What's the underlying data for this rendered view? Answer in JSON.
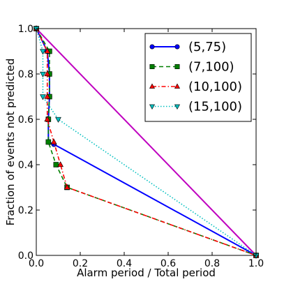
{
  "chart_data": {
    "type": "line",
    "title": "",
    "xlabel": "Alarm period / Total period",
    "ylabel": "Fraction of events not predicted",
    "xlim": [
      0.0,
      1.0
    ],
    "ylim": [
      0.0,
      1.0
    ],
    "x_ticks": [
      "0.0",
      "0.2",
      "0.4",
      "0.6",
      "0.8",
      "1.0"
    ],
    "y_ticks": [
      "0.0",
      "0.2",
      "0.4",
      "0.6",
      "0.8",
      "1.0"
    ],
    "grid": false,
    "legend_position": "top-right",
    "reference_line": {
      "x": [
        0.0,
        1.0
      ],
      "y": [
        1.0,
        0.0
      ],
      "color": "#bf00bf"
    },
    "series": [
      {
        "name": "(5,75)",
        "color": "#0000ff",
        "line_style": "solid",
        "marker": "circle",
        "x": [
          0.0,
          0.05,
          0.06,
          0.06,
          0.055,
          0.055,
          0.055,
          0.08,
          1.0
        ],
        "y": [
          1.0,
          0.9,
          0.8,
          0.7,
          0.6,
          0.5,
          0.5,
          0.49,
          0.0
        ]
      },
      {
        "name": "(7,100)",
        "color": "#007f00",
        "line_style": "dashed",
        "marker": "square",
        "x": [
          0.0,
          0.06,
          0.06,
          0.06,
          0.055,
          0.055,
          0.09,
          0.14,
          1.0
        ],
        "y": [
          1.0,
          0.9,
          0.8,
          0.7,
          0.6,
          0.5,
          0.4,
          0.3,
          0.0
        ]
      },
      {
        "name": "(10,100)",
        "color": "#ff0000",
        "line_style": "dashdot",
        "marker": "triangle-up",
        "x": [
          0.0,
          0.05,
          0.05,
          0.05,
          0.05,
          0.08,
          0.11,
          0.14,
          1.0
        ],
        "y": [
          1.0,
          0.9,
          0.8,
          0.7,
          0.6,
          0.5,
          0.4,
          0.3,
          0.0
        ]
      },
      {
        "name": "(15,100)",
        "color": "#00bfbf",
        "line_style": "dotted",
        "marker": "triangle-down",
        "x": [
          0.0,
          0.03,
          0.03,
          0.03,
          0.1,
          1.0
        ],
        "y": [
          1.0,
          0.9,
          0.8,
          0.7,
          0.6,
          0.0
        ]
      }
    ]
  }
}
